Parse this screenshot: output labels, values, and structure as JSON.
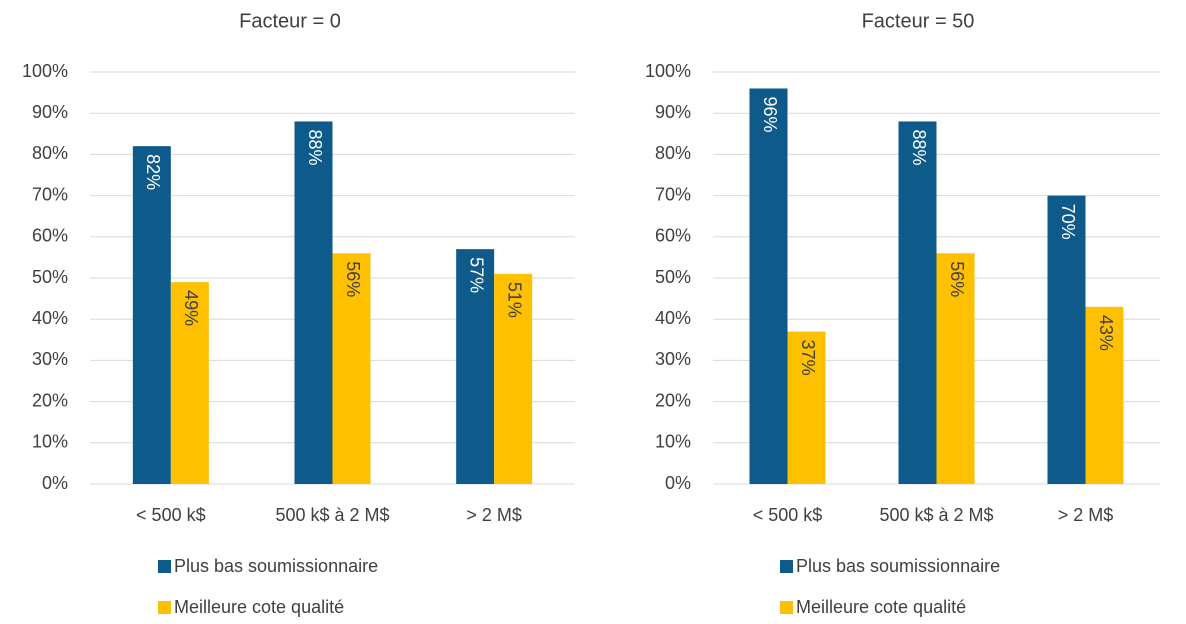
{
  "chart_data": [
    {
      "type": "bar",
      "title": "Facteur = 0",
      "categories": [
        "< 500 k$",
        "500 k$ à 2 M$",
        "> 2 M$"
      ],
      "series": [
        {
          "name": "Plus bas soumissionnaire",
          "color": "#0e5a8a",
          "values": [
            82,
            88,
            57
          ],
          "value_labels": [
            "82%",
            "88%",
            "57%"
          ]
        },
        {
          "name": "Meilleure cote qualité",
          "color": "#ffc000",
          "values": [
            49,
            56,
            51
          ],
          "value_labels": [
            "49%",
            "56%",
            "51%"
          ]
        }
      ],
      "ylim": [
        0,
        100
      ],
      "yticks": [
        {
          "value": 0,
          "label": "0%"
        },
        {
          "value": 10,
          "label": "10%"
        },
        {
          "value": 20,
          "label": "20%"
        },
        {
          "value": 30,
          "label": "30%"
        },
        {
          "value": 40,
          "label": "40%"
        },
        {
          "value": 50,
          "label": "50%"
        },
        {
          "value": 60,
          "label": "60%"
        },
        {
          "value": 70,
          "label": "70%"
        },
        {
          "value": 80,
          "label": "80%"
        },
        {
          "value": 90,
          "label": "90%"
        },
        {
          "value": 100,
          "label": "100%"
        }
      ],
      "grid": true,
      "legend": "bottom"
    },
    {
      "type": "bar",
      "title": "Facteur = 50",
      "categories": [
        "< 500 k$",
        "500 k$ à 2 M$",
        "> 2 M$"
      ],
      "series": [
        {
          "name": "Plus bas soumissionnaire",
          "color": "#0e5a8a",
          "values": [
            96,
            88,
            70
          ],
          "value_labels": [
            "96%",
            "88%",
            "70%"
          ]
        },
        {
          "name": "Meilleure cote qualité",
          "color": "#ffc000",
          "values": [
            37,
            56,
            43
          ],
          "value_labels": [
            "37%",
            "56%",
            "43%"
          ]
        }
      ],
      "ylim": [
        0,
        100
      ],
      "yticks": [
        {
          "value": 0,
          "label": "0%"
        },
        {
          "value": 10,
          "label": "10%"
        },
        {
          "value": 20,
          "label": "20%"
        },
        {
          "value": 30,
          "label": "30%"
        },
        {
          "value": 40,
          "label": "40%"
        },
        {
          "value": 50,
          "label": "50%"
        },
        {
          "value": 60,
          "label": "60%"
        },
        {
          "value": 70,
          "label": "70%"
        },
        {
          "value": 80,
          "label": "80%"
        },
        {
          "value": 90,
          "label": "90%"
        },
        {
          "value": 100,
          "label": "100%"
        }
      ],
      "grid": true,
      "legend": "bottom"
    }
  ]
}
